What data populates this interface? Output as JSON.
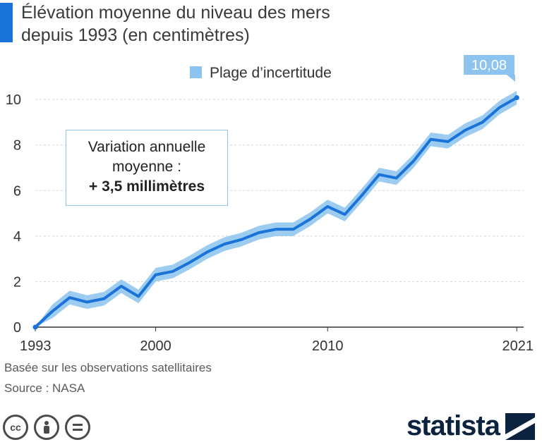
{
  "title_lines": [
    "Élévation moyenne du niveau des mers",
    "depuis 1993 (en centimètres)"
  ],
  "legend_label": "Plage d’incertitude",
  "annotation": {
    "line1": "Variation annuelle",
    "line2": "moyenne :",
    "line3": "+ 3,5 millimètres"
  },
  "callout_value": "10,08",
  "footnote": {
    "line1": "Basée sur les observations satellitaires",
    "line2": "Source : NASA"
  },
  "brand": "statista",
  "cc_icons": [
    "cc-icon",
    "by-person-icon",
    "nd-equals-icon"
  ],
  "colors": {
    "line": "#1a73d9",
    "band": "#8cc3ef",
    "accent": "#1a73d9",
    "callout": "#8cc3ef",
    "brand": "#0c2340"
  },
  "chart_data": {
    "type": "line",
    "title": "Élévation moyenne du niveau des mers depuis 1993 (en centimètres)",
    "xlabel": "",
    "ylabel": "",
    "xlim": [
      1993,
      2021.4
    ],
    "ylim": [
      0,
      10.5
    ],
    "x_ticks": [
      1993,
      2000,
      2010,
      2021
    ],
    "y_ticks": [
      0,
      2,
      4,
      6,
      8,
      10
    ],
    "grid": true,
    "legend_position": "top",
    "band_halfwidth": 0.3,
    "series": [
      {
        "name": "",
        "x": [
          1993,
          1994,
          1995,
          1996,
          1997,
          1998,
          1999,
          2000,
          2001,
          2002,
          2003,
          2004,
          2005,
          2006,
          2007,
          2008,
          2009,
          2010,
          2011,
          2012,
          2013,
          2014,
          2015,
          2016,
          2017,
          2018,
          2019,
          2020,
          2021
        ],
        "y": [
          0,
          0.7,
          1.3,
          1.1,
          1.25,
          1.8,
          1.35,
          2.3,
          2.45,
          2.85,
          3.3,
          3.65,
          3.85,
          4.15,
          4.3,
          4.3,
          4.75,
          5.3,
          4.95,
          5.8,
          6.7,
          6.55,
          7.3,
          8.25,
          8.15,
          8.65,
          9.0,
          9.65,
          10.08
        ]
      }
    ]
  }
}
